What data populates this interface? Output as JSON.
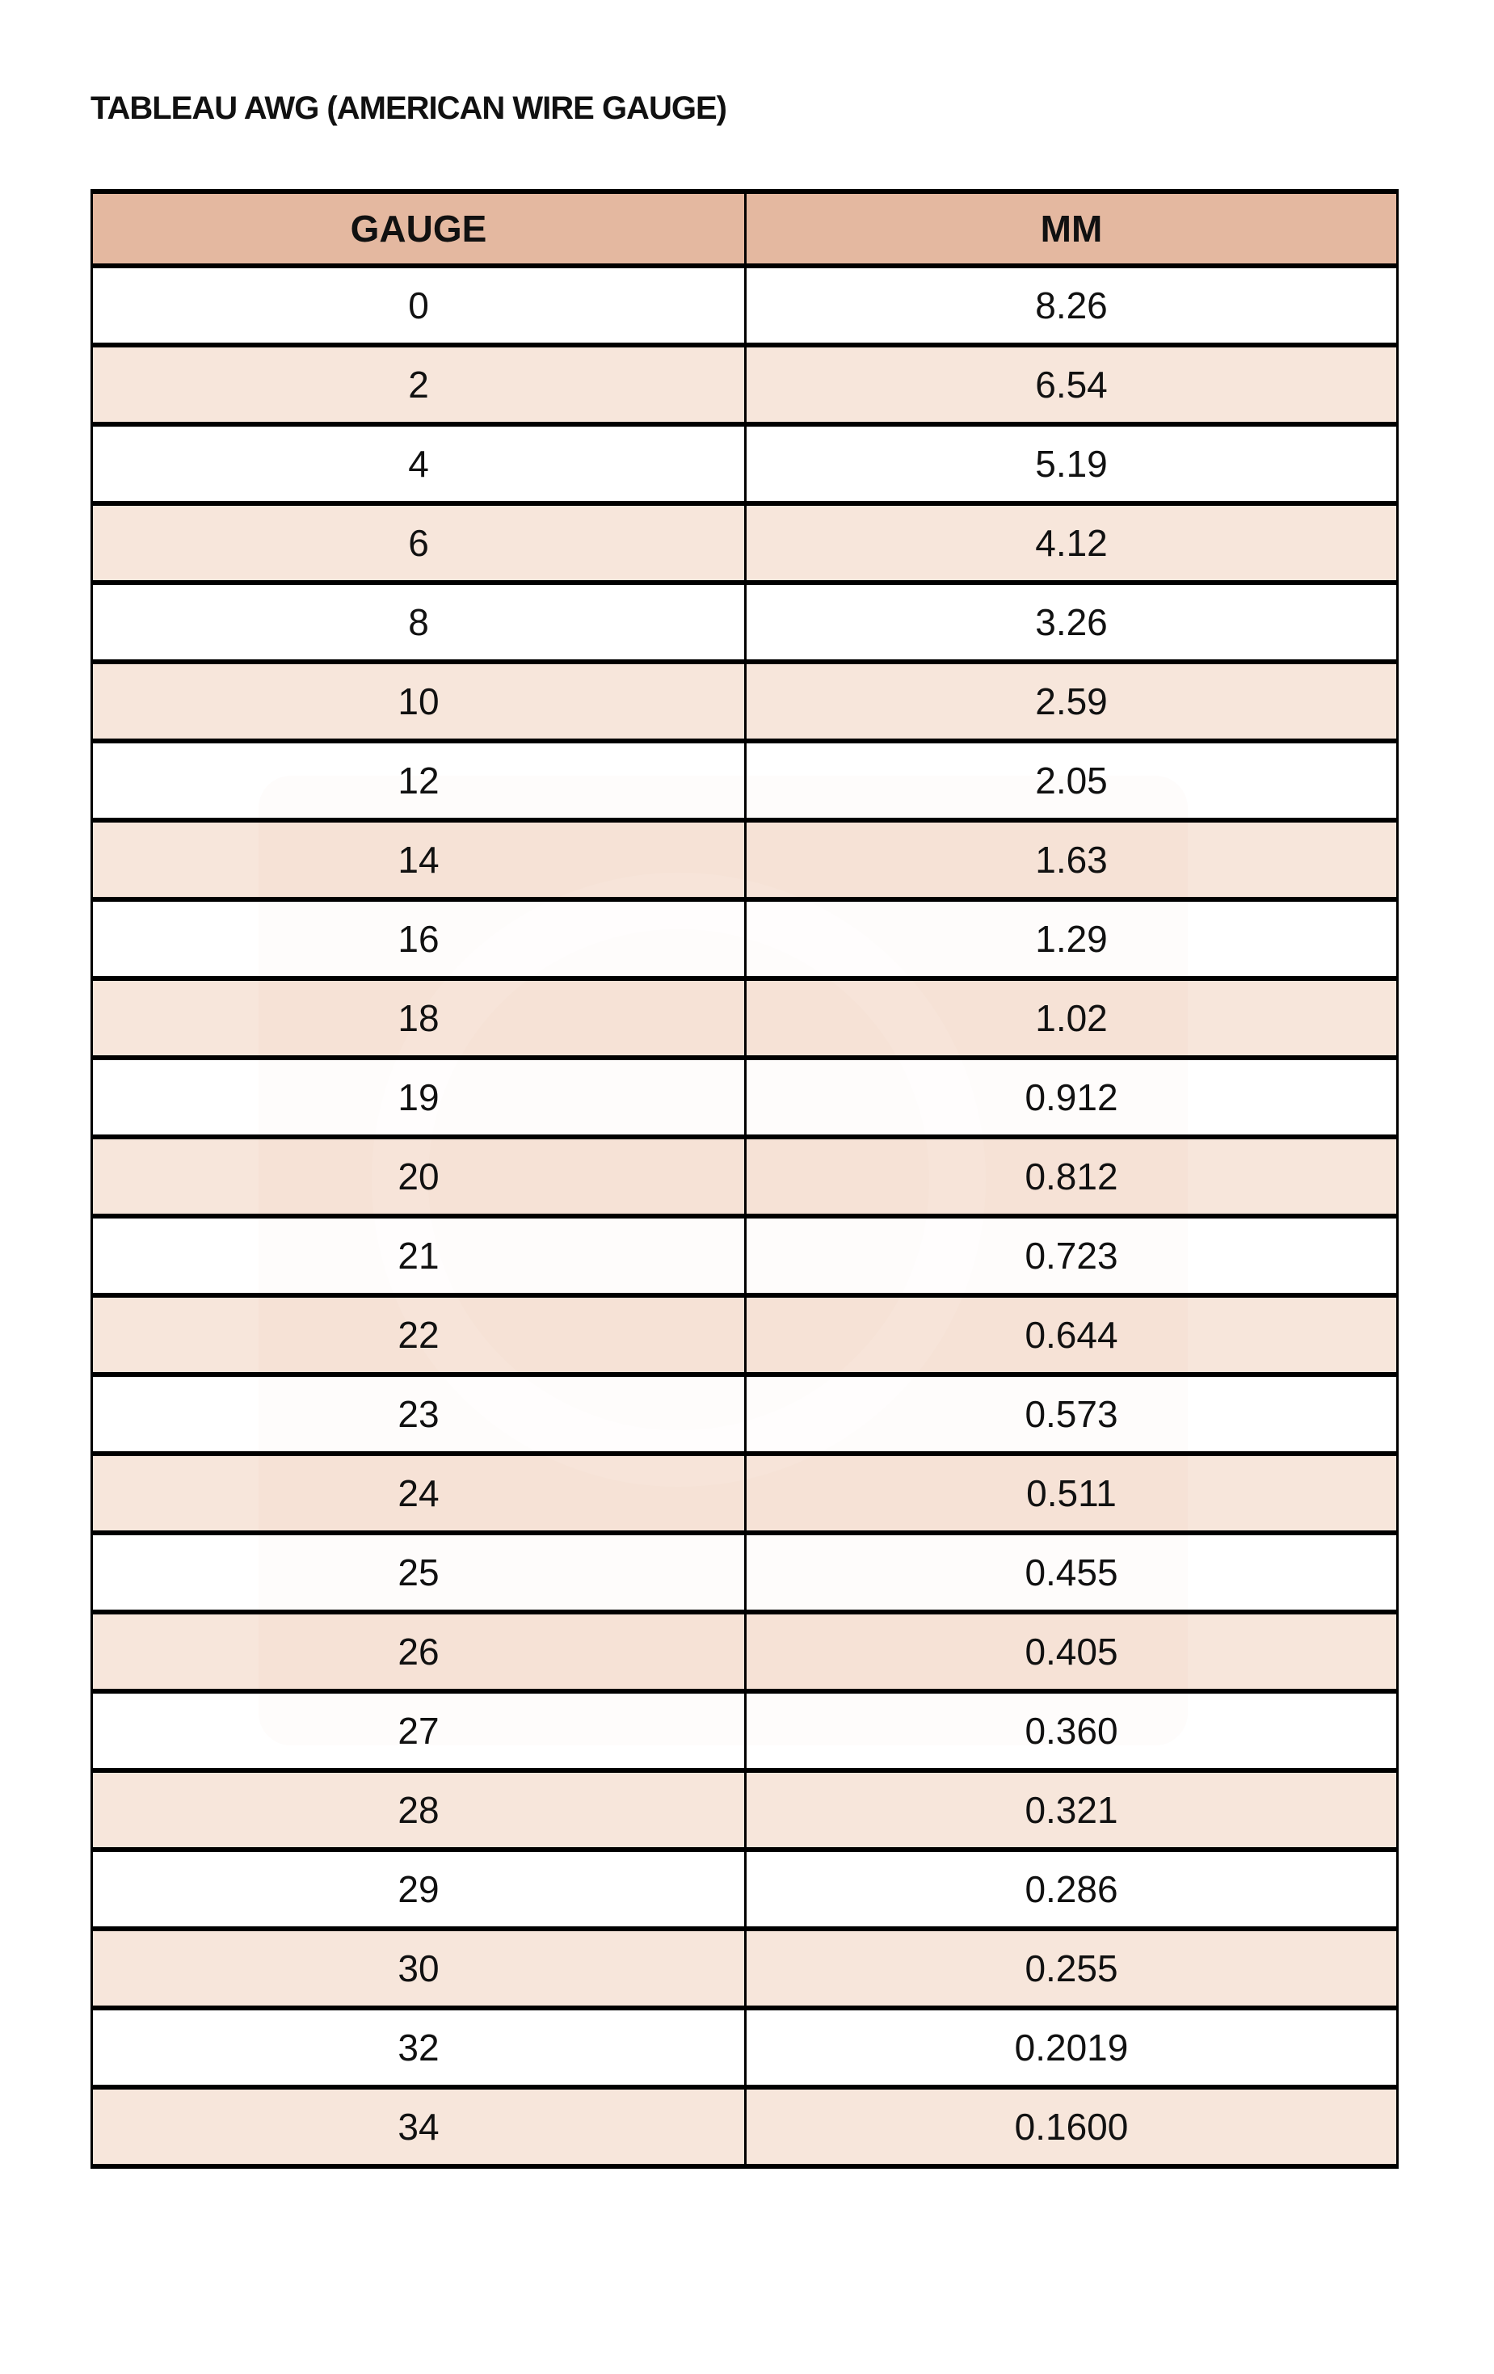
{
  "title": "TABLEAU AWG (AMERICAN WIRE GAUGE)",
  "table": {
    "headers": [
      "GAUGE",
      "MM"
    ],
    "header_color": "#e4b8a0",
    "alt_row_color": "#f5e3d8",
    "rows": [
      [
        "0",
        "8.26"
      ],
      [
        "2",
        "6.54"
      ],
      [
        "4",
        "5.19"
      ],
      [
        "6",
        "4.12"
      ],
      [
        "8",
        "3.26"
      ],
      [
        "10",
        "2.59"
      ],
      [
        "12",
        "2.05"
      ],
      [
        "14",
        "1.63"
      ],
      [
        "16",
        "1.29"
      ],
      [
        "18",
        "1.02"
      ],
      [
        "19",
        "0.912"
      ],
      [
        "20",
        "0.812"
      ],
      [
        "21",
        "0.723"
      ],
      [
        "22",
        "0.644"
      ],
      [
        "23",
        "0.573"
      ],
      [
        "24",
        "0.511"
      ],
      [
        "25",
        "0.455"
      ],
      [
        "26",
        "0.405"
      ],
      [
        "27",
        "0.360"
      ],
      [
        "28",
        "0.321"
      ],
      [
        "29",
        "0.286"
      ],
      [
        "30",
        "0.255"
      ],
      [
        "32",
        "0.2019"
      ],
      [
        "34",
        "0.1600"
      ]
    ]
  },
  "watermark": "logo-watermark"
}
